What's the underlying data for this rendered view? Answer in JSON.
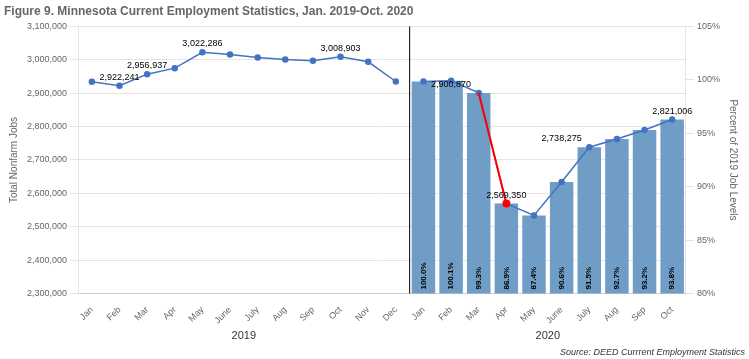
{
  "chart_data": {
    "type": "bar",
    "title": "Figure 9. Minnesota Current Employment Statistics, Jan. 2019-Oct. 2020",
    "source": "Source: DEED Currrent Employment Statistics",
    "ylabel": "Total Nonfarm Jobs",
    "y2label": "Percent of 2019 Job Levels",
    "categories": [
      "Jan",
      "Feb",
      "Mar",
      "Apr",
      "May",
      "June",
      "July",
      "Aug",
      "Sep",
      "Oct",
      "Nov",
      "Dec",
      "Jan",
      "Feb",
      "Mar",
      "Apr",
      "May",
      "June",
      "July",
      "Aug",
      "Sep",
      "Oct"
    ],
    "groups": [
      {
        "label": "2019",
        "start": 0,
        "end": 11
      },
      {
        "label": "2020",
        "start": 12,
        "end": 21
      }
    ],
    "series": [
      {
        "type": "bar",
        "color": "#6F9DC6",
        "values": [
          null,
          null,
          null,
          null,
          null,
          null,
          null,
          null,
          null,
          null,
          null,
          null,
          2935000,
          2937000,
          2900870,
          2569350,
          2534000,
          2634000,
          2738275,
          2763000,
          2790000,
          2821006
        ],
        "percent_labels": [
          null,
          null,
          null,
          null,
          null,
          null,
          null,
          null,
          null,
          null,
          null,
          null,
          "100.0%",
          "100.1%",
          "99.3%",
          "86.9%",
          "87.4%",
          "90.6%",
          "91.5%",
          "92.7%",
          "93.2%",
          "93.8%"
        ]
      },
      {
        "type": "line",
        "color": "#4472C4",
        "marker": "circle",
        "values": [
          2934000,
          2922241,
          2956937,
          2975000,
          3022286,
          3016000,
          3007000,
          3001000,
          2997000,
          3008903,
          2994000,
          2935000,
          null,
          null,
          null,
          null,
          null,
          null,
          null,
          null,
          null,
          null
        ]
      },
      {
        "type": "line",
        "color": "#4472C4",
        "marker": "circle",
        "values": [
          null,
          null,
          null,
          null,
          null,
          null,
          null,
          null,
          null,
          null,
          null,
          null,
          2935000,
          2937000,
          2900870,
          2569350,
          2534000,
          2634000,
          2738275,
          2763000,
          2790000,
          2821006
        ]
      },
      {
        "type": "line",
        "color": "#FF0000",
        "values": [
          null,
          null,
          null,
          null,
          null,
          null,
          null,
          null,
          null,
          null,
          null,
          null,
          null,
          null,
          2900870,
          2569350,
          null,
          null,
          null,
          null,
          null,
          null
        ]
      }
    ],
    "annotations": [
      {
        "text": "2,922,241",
        "x": 1,
        "y": 2922241
      },
      {
        "text": "2,956,937",
        "x": 2,
        "y": 2956937
      },
      {
        "text": "3,022,286",
        "x": 4,
        "y": 3022286
      },
      {
        "text": "3,008,903",
        "x": 9,
        "y": 3008903
      },
      {
        "text": "2,900,870",
        "x": 13,
        "y": 2900870
      },
      {
        "text": "2,569,350",
        "x": 15,
        "y": 2569350
      },
      {
        "text": "2,738,275",
        "x": 17,
        "y": 2738275
      },
      {
        "text": "2,821,006",
        "x": 21,
        "y": 2821006
      }
    ],
    "ylim": [
      2300000,
      3100000
    ],
    "yticks": [
      {
        "value": 2300000,
        "label": "2,300,000"
      },
      {
        "value": 2400000,
        "label": "2,400,000"
      },
      {
        "value": 2500000,
        "label": "2,500,000"
      },
      {
        "value": 2600000,
        "label": "2,600,000"
      },
      {
        "value": 2700000,
        "label": "2,700,000"
      },
      {
        "value": 2800000,
        "label": "2,800,000"
      },
      {
        "value": 2900000,
        "label": "2,900,000"
      },
      {
        "value": 3000000,
        "label": "3,000,000"
      },
      {
        "value": 3100000,
        "label": "3,100,000"
      }
    ],
    "y2lim": [
      0.8,
      1.05
    ],
    "y2ticks": [
      {
        "value": 0.8,
        "label": "80%"
      },
      {
        "value": 0.85,
        "label": "85%"
      },
      {
        "value": 0.9,
        "label": "90%"
      },
      {
        "value": 0.95,
        "label": "95%"
      },
      {
        "value": 1.0,
        "label": "100%"
      },
      {
        "value": 1.05,
        "label": "105%"
      }
    ],
    "grid": true
  }
}
